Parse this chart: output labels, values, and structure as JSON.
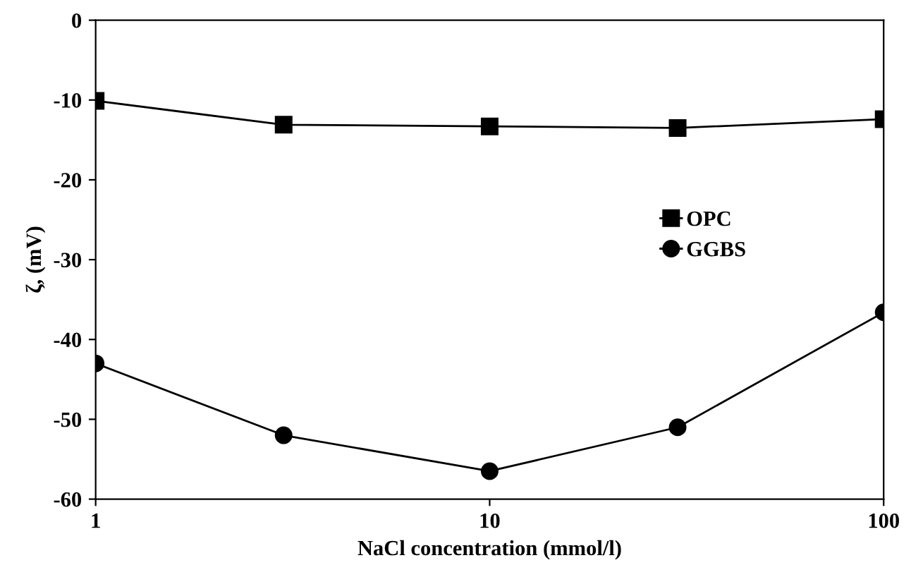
{
  "chart_data": {
    "type": "line",
    "xlabel": "NaCl concentration (mmol/l)",
    "ylabel": "ζ, (mV)",
    "x": [
      1,
      3,
      10,
      30,
      100
    ],
    "series": [
      {
        "name": "OPC",
        "color": "#000000",
        "values": [
          -10.1,
          -13.1,
          -13.3,
          -13.5,
          -12.4
        ],
        "marker": "square"
      },
      {
        "name": "GGBS",
        "color": "#000000",
        "values": [
          -43.0,
          -52.0,
          -56.5,
          -51.0,
          -36.6
        ],
        "marker": "circle"
      }
    ],
    "log": "x",
    "xlim": [
      1,
      100
    ],
    "xticks": [
      1,
      10,
      100
    ],
    "ylim": [
      -60,
      0
    ],
    "yticks": [
      -60,
      -50,
      -40,
      -30,
      -20,
      -10,
      0
    ],
    "grid": false,
    "legend": "right",
    "line_style": "solid"
  }
}
